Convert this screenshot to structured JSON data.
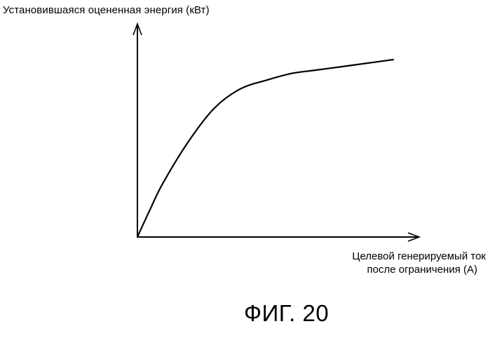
{
  "chart_data": {
    "type": "line",
    "ylabel": "Установившаяся оцененная энергия (кВт)",
    "xlabel_lines": [
      "Целевой генерируемый ток",
      "после ограничения (А)"
    ],
    "figure_caption": "ФИГ. 20",
    "grid": false,
    "legend": "none",
    "xlim": [
      0,
      1
    ],
    "ylim": [
      0,
      1
    ],
    "series": [
      {
        "x": [
          0,
          0.05,
          0.1,
          0.2,
          0.3,
          0.4,
          0.5,
          0.6,
          0.7,
          0.8,
          0.9,
          1.0
        ],
        "y": [
          0,
          0.16,
          0.31,
          0.55,
          0.74,
          0.85,
          0.9,
          0.94,
          0.96,
          0.98,
          1.0,
          1.02
        ]
      }
    ]
  }
}
